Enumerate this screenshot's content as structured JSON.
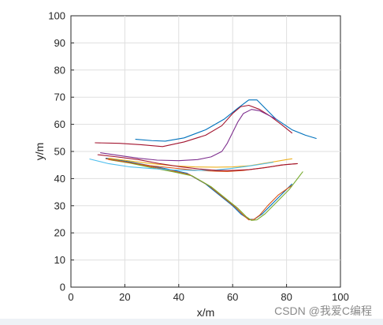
{
  "chart_data": {
    "type": "line",
    "title": "",
    "xlabel": "x/m",
    "ylabel": "y/m",
    "xlim": [
      0,
      100
    ],
    "ylim": [
      0,
      100
    ],
    "xticks": [
      0,
      20,
      40,
      60,
      80,
      100
    ],
    "yticks": [
      0,
      10,
      20,
      30,
      40,
      50,
      60,
      70,
      80,
      90,
      100
    ],
    "grid": true,
    "series": [
      {
        "color": "#0072BD",
        "x": [
          24,
          30,
          35,
          42,
          50,
          57,
          62,
          66,
          69,
          72,
          76,
          82,
          87,
          91
        ],
        "y": [
          54.5,
          54,
          53.8,
          55,
          58,
          62,
          66,
          69,
          69,
          66,
          62,
          58,
          56,
          54.8
        ]
      },
      {
        "color": "#A2142F",
        "x": [
          9,
          18,
          26,
          34,
          42,
          50,
          56,
          60,
          63,
          66,
          70,
          74,
          78,
          82
        ],
        "y": [
          53.2,
          53,
          52.5,
          51.8,
          53.5,
          56,
          59.5,
          64,
          66.5,
          67,
          65.5,
          63,
          60,
          56.8
        ]
      },
      {
        "color": "#7E2F8E",
        "x": [
          11,
          18,
          25,
          32,
          40,
          47,
          52,
          56,
          58,
          60,
          62,
          64,
          67,
          70,
          73,
          76
        ],
        "y": [
          49.5,
          48.5,
          47.5,
          46.8,
          46.6,
          47,
          48,
          50,
          53,
          57,
          61,
          64,
          65.5,
          65,
          63.5,
          62
        ]
      },
      {
        "color": "#0072BD",
        "x": [
          13,
          20,
          28,
          36,
          43,
          50,
          55,
          60,
          63,
          66,
          68,
          71,
          74,
          78,
          82
        ],
        "y": [
          47.5,
          46.5,
          45,
          43.5,
          42,
          38,
          34,
          30,
          27,
          25,
          25,
          27,
          30,
          34,
          38
        ]
      },
      {
        "color": "#D95319",
        "x": [
          14,
          21,
          29,
          37,
          44,
          51,
          56,
          61,
          64,
          66,
          68,
          70,
          73,
          77,
          82
        ],
        "y": [
          47,
          46,
          44.5,
          43,
          41.5,
          37.5,
          33.5,
          29.5,
          26.5,
          24.8,
          25,
          26.5,
          30,
          34,
          37.5
        ]
      },
      {
        "color": "#77AC30",
        "x": [
          15,
          22,
          30,
          38,
          45,
          52,
          57,
          62,
          65,
          67,
          69,
          72,
          76,
          81,
          86
        ],
        "y": [
          46.8,
          45.7,
          44,
          42.5,
          41,
          37,
          33,
          29,
          26,
          24.6,
          24.8,
          27,
          31,
          36,
          42.5
        ]
      },
      {
        "color": "#EDB120",
        "x": [
          14,
          22,
          30,
          38,
          46,
          54,
          60,
          66,
          71,
          76,
          80,
          82
        ],
        "y": [
          47.5,
          46.5,
          45.5,
          44.7,
          44.3,
          44.2,
          44.3,
          44.7,
          45.5,
          46.3,
          47,
          47.3
        ]
      },
      {
        "color": "#D95319",
        "x": [
          13,
          21,
          29,
          37,
          45,
          52,
          58,
          64,
          70,
          75,
          80,
          84
        ],
        "y": [
          47.3,
          46,
          44.8,
          44,
          43.2,
          42.8,
          42.6,
          43,
          43.8,
          44.5,
          45.2,
          45.5
        ]
      },
      {
        "color": "#4DBEEE",
        "x": [
          7,
          14,
          22,
          30,
          38,
          46,
          54,
          60,
          66,
          70,
          75
        ],
        "y": [
          47.2,
          45.5,
          44.3,
          43.7,
          43.2,
          43,
          43.2,
          43.8,
          44.6,
          45.2,
          46
        ]
      },
      {
        "color": "#A2142F",
        "x": [
          10,
          17,
          25,
          33,
          41,
          48,
          54,
          60,
          66,
          72,
          78,
          84
        ],
        "y": [
          48.8,
          48,
          47,
          45.5,
          44.3,
          43.5,
          43,
          43,
          43.3,
          44,
          45,
          45.5
        ]
      }
    ]
  },
  "watermark": "CSDN @我爱C编程"
}
